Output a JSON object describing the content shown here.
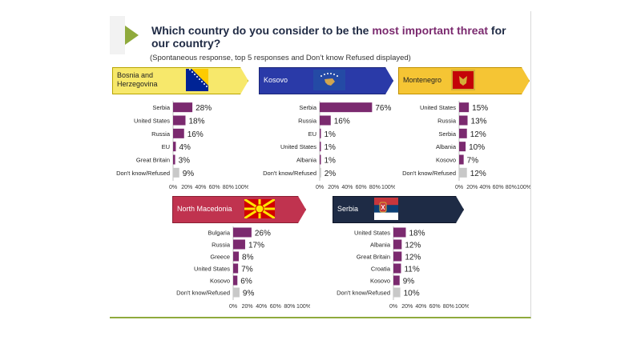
{
  "title": {
    "prefix": "Which country do you consider to be the ",
    "highlight": "most important threat",
    "suffix": " for our country?"
  },
  "subtitle": "(Spontaneous response, top 5 responses and Don’t know Refused displayed)",
  "colors": {
    "bar": "#7b2a6f",
    "dontknow": "#c8c8c8",
    "accent": "#8faa3c"
  },
  "chart_data": [
    {
      "type": "bar",
      "orientation": "horizontal",
      "title": "Bosnia and\nHerzegovina",
      "categories": [
        "Serbia",
        "United States",
        "Russia",
        "EU",
        "Great Britain",
        "Don't know/Refused"
      ],
      "values": [
        28,
        18,
        16,
        4,
        3,
        9
      ],
      "value_labels": [
        "28%",
        "18%",
        "16%",
        "4%",
        "3%",
        "9%"
      ],
      "xlim": [
        0,
        100
      ],
      "xticks": [
        "0%",
        "20%",
        "40%",
        "60%",
        "80%",
        "100%"
      ]
    },
    {
      "type": "bar",
      "orientation": "horizontal",
      "title": "Kosovo",
      "categories": [
        "Serbia",
        "Russia",
        "EU",
        "United States",
        "Albania",
        "Don't know/Refused"
      ],
      "values": [
        76,
        16,
        1,
        1,
        1,
        2
      ],
      "value_labels": [
        "76%",
        "16%",
        "1%",
        "1%",
        "1%",
        "2%"
      ],
      "xlim": [
        0,
        100
      ],
      "xticks": [
        "0%",
        "20%",
        "40%",
        "60%",
        "80%",
        "100%"
      ]
    },
    {
      "type": "bar",
      "orientation": "horizontal",
      "title": "Montenegro",
      "categories": [
        "United States",
        "Russia",
        "Serbia",
        "Albania",
        "Kosovo",
        "Don't know/Refused"
      ],
      "values": [
        15,
        13,
        12,
        10,
        7,
        12
      ],
      "value_labels": [
        "15%",
        "13%",
        "12%",
        "10%",
        "7%",
        "12%"
      ],
      "xlim": [
        0,
        100
      ],
      "xticks": [
        "0%",
        "20%",
        "40%",
        "60%",
        "80%",
        "100%"
      ]
    },
    {
      "type": "bar",
      "orientation": "horizontal",
      "title": "North Macedonia",
      "categories": [
        "Bulgaria",
        "Russia",
        "Greece",
        "United States",
        "Kosovo",
        "Don't know/Refused"
      ],
      "values": [
        26,
        17,
        8,
        7,
        6,
        9
      ],
      "value_labels": [
        "26%",
        "17%",
        "8%",
        "7%",
        "6%",
        "9%"
      ],
      "xlim": [
        0,
        100
      ],
      "xticks": [
        "0%",
        "20%",
        "40%",
        "60%",
        "80%",
        "100%"
      ]
    },
    {
      "type": "bar",
      "orientation": "horizontal",
      "title": "Serbia",
      "categories": [
        "United States",
        "Albania",
        "Great Britain",
        "Croatia",
        "Kosovo",
        "Don't know/Refused"
      ],
      "values": [
        18,
        12,
        12,
        11,
        9,
        10
      ],
      "value_labels": [
        "18%",
        "12%",
        "12%",
        "11%",
        "9%",
        "10%"
      ],
      "xlim": [
        0,
        100
      ],
      "xticks": [
        "0%",
        "20%",
        "40%",
        "60%",
        "80%",
        "100%"
      ]
    }
  ]
}
